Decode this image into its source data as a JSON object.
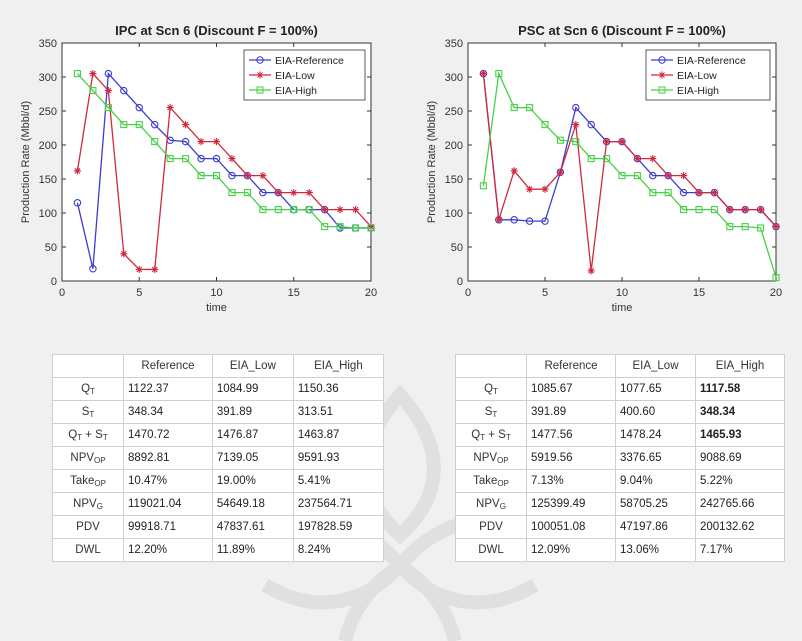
{
  "chart_data": [
    {
      "type": "line",
      "title": "IPC at Scn 6 (Discount F = 100%)",
      "xlabel": "time",
      "ylabel": "Production Rate (Mbbl/d)",
      "xlim": [
        0,
        20
      ],
      "ylim": [
        0,
        350
      ],
      "xticks": [
        0,
        5,
        10,
        15,
        20
      ],
      "yticks": [
        0,
        50,
        100,
        150,
        200,
        250,
        300,
        350
      ],
      "legend_position": "top-right",
      "x": [
        1,
        2,
        3,
        4,
        5,
        6,
        7,
        8,
        9,
        10,
        11,
        12,
        13,
        14,
        15,
        16,
        17,
        18,
        19,
        20
      ],
      "series": [
        {
          "name": "EIA-Reference",
          "color": "#3c3cd2",
          "marker": "circle",
          "values": [
            115,
            18,
            305,
            280,
            255,
            230,
            207,
            205,
            180,
            180,
            155,
            155,
            130,
            130,
            105,
            105,
            105,
            78,
            78,
            78
          ]
        },
        {
          "name": "EIA-Low",
          "color": "#d2283c",
          "marker": "star",
          "values": [
            162,
            305,
            280,
            40,
            17,
            17,
            255,
            230,
            205,
            205,
            180,
            155,
            155,
            130,
            130,
            130,
            105,
            105,
            105,
            80
          ]
        },
        {
          "name": "EIA-High",
          "color": "#46d246",
          "marker": "square",
          "values": [
            305,
            280,
            255,
            230,
            230,
            205,
            180,
            180,
            155,
            155,
            130,
            130,
            105,
            105,
            105,
            105,
            80,
            80,
            78,
            78
          ]
        }
      ]
    },
    {
      "type": "line",
      "title": "PSC at Scn 6 (Discount F = 100%)",
      "xlabel": "time",
      "ylabel": "Production Rate (Mbbl/d)",
      "xlim": [
        0,
        20
      ],
      "ylim": [
        0,
        350
      ],
      "xticks": [
        0,
        5,
        10,
        15,
        20
      ],
      "yticks": [
        0,
        50,
        100,
        150,
        200,
        250,
        300,
        350
      ],
      "legend_position": "top-right",
      "x": [
        1,
        2,
        3,
        4,
        5,
        6,
        7,
        8,
        9,
        10,
        11,
        12,
        13,
        14,
        15,
        16,
        17,
        18,
        19,
        20
      ],
      "series": [
        {
          "name": "EIA-Reference",
          "color": "#3c3cd2",
          "marker": "circle",
          "values": [
            305,
            90,
            90,
            88,
            88,
            160,
            255,
            230,
            205,
            205,
            180,
            155,
            155,
            130,
            130,
            130,
            105,
            105,
            105,
            80
          ]
        },
        {
          "name": "EIA-Low",
          "color": "#d2283c",
          "marker": "star",
          "values": [
            305,
            90,
            162,
            135,
            135,
            160,
            230,
            15,
            205,
            205,
            180,
            180,
            155,
            155,
            130,
            130,
            105,
            105,
            105,
            80
          ]
        },
        {
          "name": "EIA-High",
          "color": "#46d246",
          "marker": "square",
          "values": [
            140,
            305,
            255,
            255,
            230,
            207,
            205,
            180,
            180,
            155,
            155,
            130,
            130,
            105,
            105,
            105,
            80,
            80,
            78,
            5
          ]
        }
      ]
    }
  ],
  "tables": [
    {
      "columns": [
        "Reference",
        "EIA_Low",
        "EIA_High"
      ],
      "rows": [
        {
          "label": "Q",
          "sub": "T",
          "extra": "",
          "values": [
            "1122.37",
            "1084.99",
            "1150.36"
          ]
        },
        {
          "label": "S",
          "sub": "T",
          "extra": "",
          "values": [
            "348.34",
            "391.89",
            "313.51"
          ]
        },
        {
          "label": "Q",
          "sub": "T",
          "extra": " + S",
          "extra_sub": "T",
          "values": [
            "1470.72",
            "1476.87",
            "1463.87"
          ]
        },
        {
          "label": "NPV",
          "sub": "OP",
          "extra": "",
          "values": [
            "8892.81",
            "7139.05",
            "9591.93"
          ]
        },
        {
          "label": "Take",
          "sub": "OP",
          "extra": "",
          "values": [
            "10.47%",
            "19.00%",
            "5.41%"
          ]
        },
        {
          "label": "NPV",
          "sub": "G",
          "extra": "",
          "values": [
            "119021.04",
            "54649.18",
            "237564.71"
          ]
        },
        {
          "label": "PDV",
          "sub": "",
          "extra": "",
          "values": [
            "99918.71",
            "47837.61",
            "197828.59"
          ]
        },
        {
          "label": "DWL",
          "sub": "",
          "extra": "",
          "values": [
            "12.20%",
            "11.89%",
            "8.24%"
          ]
        }
      ]
    },
    {
      "columns": [
        "Reference",
        "EIA_Low",
        "EIA_High"
      ],
      "rows": [
        {
          "label": "Q",
          "sub": "T",
          "extra": "",
          "values": [
            "1085.67",
            "1077.65",
            "1117.58"
          ]
        },
        {
          "label": "S",
          "sub": "T",
          "extra": "",
          "values": [
            "391.89",
            "400.60",
            "348.34"
          ]
        },
        {
          "label": "Q",
          "sub": "T",
          "extra": " + S",
          "extra_sub": "T",
          "values": [
            "1477.56",
            "1478.24",
            "1465.93"
          ]
        },
        {
          "label": "NPV",
          "sub": "OP",
          "extra": "",
          "values": [
            "5919.56",
            "3376.65",
            "9088.69"
          ]
        },
        {
          "label": "Take",
          "sub": "OP",
          "extra": "",
          "values": [
            "7.13%",
            "9.04%",
            "5.22%"
          ]
        },
        {
          "label": "NPV",
          "sub": "G",
          "extra": "",
          "values": [
            "125399.49",
            "58705.25",
            "242765.66"
          ]
        },
        {
          "label": "PDV",
          "sub": "",
          "extra": "",
          "values": [
            "100051.08",
            "47197.86",
            "200132.62"
          ]
        },
        {
          "label": "DWL",
          "sub": "",
          "extra": "",
          "values": [
            "12.09%",
            "13.06%",
            "7.17%"
          ]
        }
      ]
    }
  ]
}
